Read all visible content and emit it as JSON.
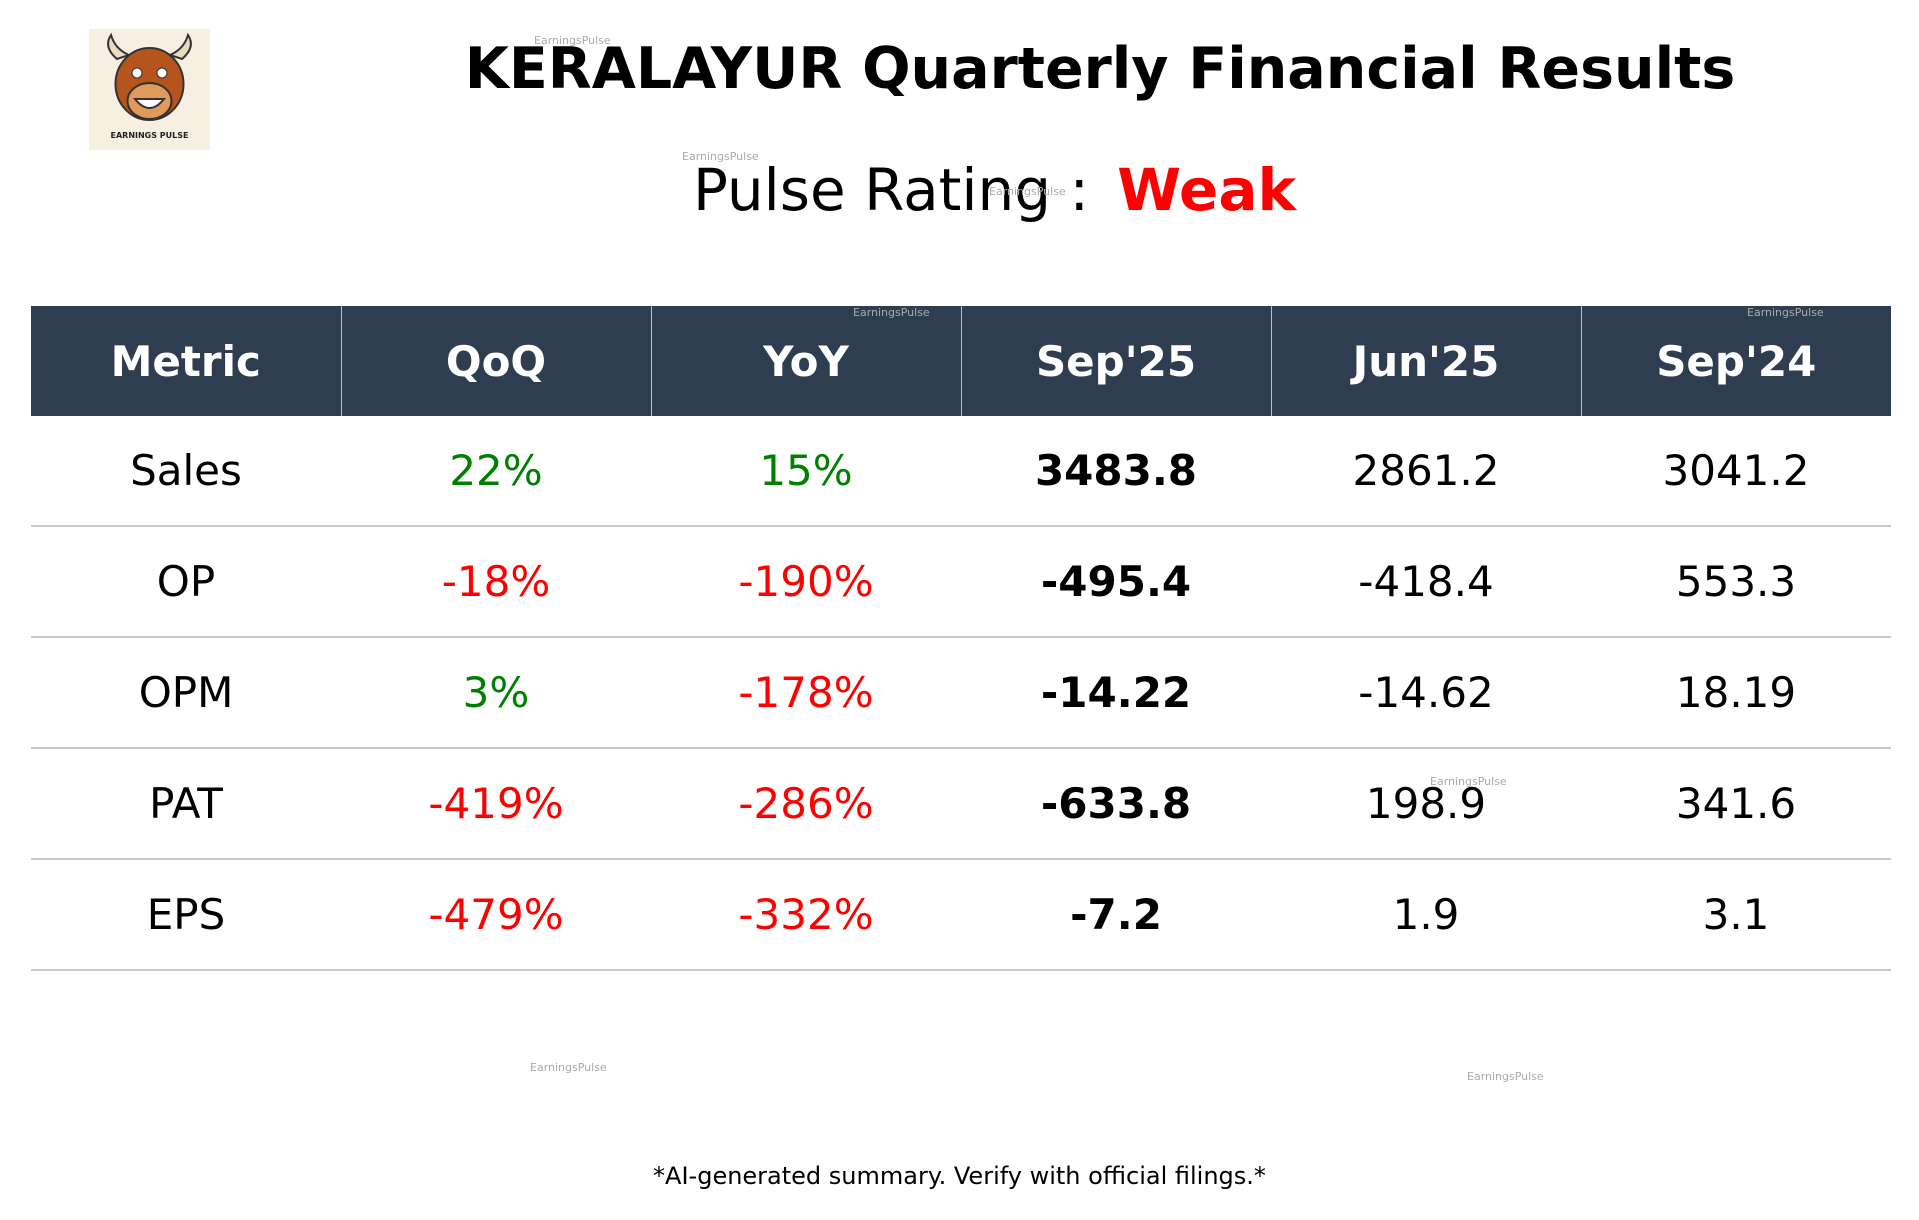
{
  "logo": {
    "caption": "EARNINGS PULSE"
  },
  "header": {
    "title": "KERALAYUR Quarterly Financial Results",
    "rating_label": "Pulse Rating :",
    "rating": "Weak"
  },
  "table": {
    "columns": [
      "Metric",
      "QoQ",
      "YoY",
      "Sep'25",
      "Jun'25",
      "Sep'24"
    ],
    "rows": [
      [
        "Sales",
        "22%",
        "15%",
        "3483.8",
        "2861.2",
        "3041.2"
      ],
      [
        "OP",
        "-18%",
        "-190%",
        "-495.4",
        "-418.4",
        "553.3"
      ],
      [
        "OPM",
        "3%",
        "-178%",
        "-14.22",
        "-14.62",
        "18.19"
      ],
      [
        "PAT",
        "-419%",
        "-286%",
        "-633.8",
        "198.9",
        "341.6"
      ],
      [
        "EPS",
        "-479%",
        "-332%",
        "-7.2",
        "1.9",
        "3.1"
      ]
    ]
  },
  "footer": "*AI-generated summary. Verify with official filings.*",
  "watermarks": [
    "EarningsPulse",
    "EarningsPulse",
    "EarningsPulse",
    "EarningsPulse",
    "EarningsPulse",
    "EarningsPulse",
    "EarningsPulse",
    "EarningsPulse"
  ]
}
